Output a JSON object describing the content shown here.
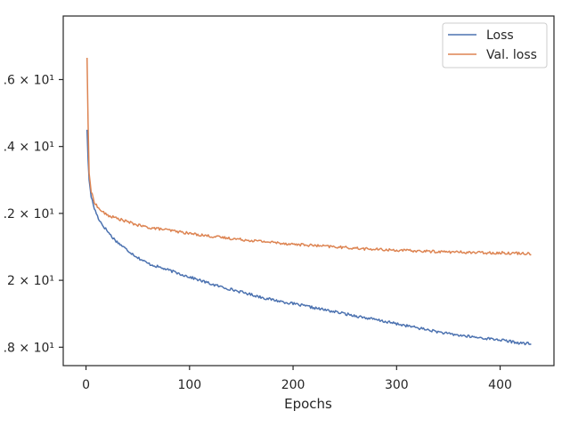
{
  "chart_data": {
    "type": "line",
    "title": "",
    "xlabel": "Epochs",
    "ylabel": "",
    "xlim": [
      -22,
      452
    ],
    "ylim": [
      1.745,
      2.79
    ],
    "yscale": "log-labelled",
    "grid": false,
    "legend_position": "top-right",
    "x_ticks": [
      {
        "value": 0,
        "label": "0"
      },
      {
        "value": 100,
        "label": "100"
      },
      {
        "value": 200,
        "label": "200"
      },
      {
        "value": 300,
        "label": "300"
      },
      {
        "value": 400,
        "label": "400"
      }
    ],
    "y_ticks": [
      {
        "value": 1.8,
        "label": ".8 × 10¹"
      },
      {
        "value": 2.0,
        "label": "2 × 10¹"
      },
      {
        "value": 2.2,
        "label": ".2 × 10¹"
      },
      {
        "value": 2.4,
        "label": ".4 × 10¹"
      },
      {
        "value": 2.6,
        "label": ".6 × 10¹"
      }
    ],
    "series": [
      {
        "name": "Loss",
        "color": "#4c72b0",
        "x": [
          1,
          2,
          3,
          5,
          8,
          12,
          16,
          20,
          25,
          30,
          40,
          50,
          60,
          75,
          90,
          100,
          125,
          150,
          175,
          200,
          225,
          250,
          275,
          300,
          325,
          350,
          375,
          400,
          420,
          430
        ],
        "y": [
          2.45,
          2.36,
          2.3,
          2.25,
          2.215,
          2.185,
          2.165,
          2.15,
          2.13,
          2.115,
          2.09,
          2.068,
          2.05,
          2.035,
          2.02,
          2.01,
          1.985,
          1.965,
          1.945,
          1.93,
          1.915,
          1.9,
          1.885,
          1.87,
          1.855,
          1.84,
          1.83,
          1.822,
          1.812,
          1.81
        ],
        "noise": 0.004
      },
      {
        "name": "Val. loss",
        "color": "#dd8452",
        "x": [
          1,
          2,
          3,
          5,
          8,
          12,
          16,
          20,
          25,
          30,
          40,
          50,
          60,
          75,
          90,
          100,
          125,
          150,
          175,
          200,
          225,
          250,
          275,
          300,
          325,
          350,
          375,
          400,
          420,
          430
        ],
        "y": [
          2.665,
          2.47,
          2.32,
          2.265,
          2.235,
          2.215,
          2.205,
          2.195,
          2.19,
          2.185,
          2.175,
          2.165,
          2.158,
          2.152,
          2.145,
          2.14,
          2.13,
          2.122,
          2.115,
          2.108,
          2.103,
          2.098,
          2.093,
          2.09,
          2.087,
          2.085,
          2.083,
          2.082,
          2.081,
          2.08
        ],
        "noise": 0.004
      }
    ]
  }
}
